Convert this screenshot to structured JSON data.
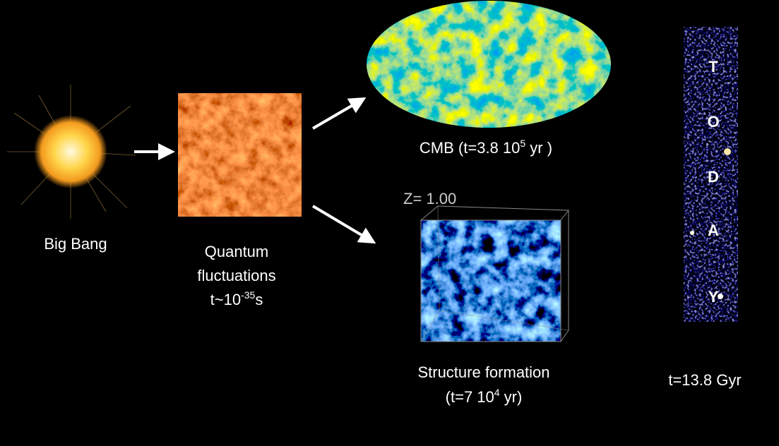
{
  "big_bang": {
    "label": "Big Bang"
  },
  "quantum": {
    "lines": [
      "Quantum",
      "fluctuations"
    ],
    "time": [
      "t~10",
      "-35",
      "s"
    ]
  },
  "cmb": {
    "caption": [
      "CMB (t=3.8 10",
      "5",
      " yr )"
    ]
  },
  "structure": {
    "inset": "Z= 1.00",
    "label": "Structure formation",
    "time": [
      "(t=7 10",
      "4",
      " yr)"
    ]
  },
  "today": {
    "letters": [
      "T",
      "O",
      "D",
      "A",
      "Y"
    ],
    "time": "t=13.8  Gyr"
  }
}
